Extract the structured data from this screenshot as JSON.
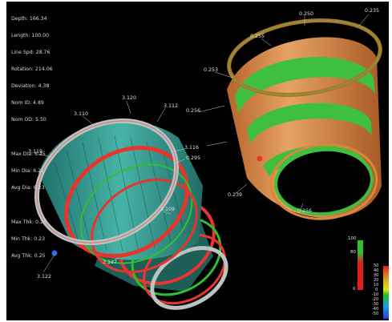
{
  "readout": {
    "group1": [
      "Depth: 166.34",
      "Length: 100.00",
      "Line Spd: 28.76",
      "Rotation: 214.06",
      "Deviation: 4.38",
      "Nom ID: 4.89",
      "Nom OD: 5.50"
    ],
    "group2": [
      "Max Dia: 6.25",
      "Min Dia: 6.21",
      "Avg Dia: 6.23"
    ],
    "group3": [
      "Max Thk: 0.26",
      "Min Thk: 0.23",
      "Avg Thk: 0.25"
    ]
  },
  "left_tube_labels": [
    "3.120",
    "3.110",
    "3.112",
    "3.119",
    "3.116",
    "0.295",
    "3.109",
    "3.117",
    "3.122"
  ],
  "right_tube_labels": [
    "0.250",
    "0.235",
    "0.255",
    "0.253",
    "0.256",
    "0.239",
    "0.256"
  ],
  "legend_green": {
    "ticks": [
      "100",
      "80",
      "0"
    ]
  },
  "legend_multi": {
    "ticks": [
      "50",
      "40",
      "30",
      "20",
      "10",
      "0",
      "-10",
      "-20",
      "-30",
      "-40",
      "-50"
    ]
  },
  "colors": {
    "background": "#000000",
    "teal": "#3aa39a",
    "red": "#e8352c",
    "green": "#3fbf3f",
    "orange": "#d9883a",
    "grey": "#b9c3c1"
  }
}
